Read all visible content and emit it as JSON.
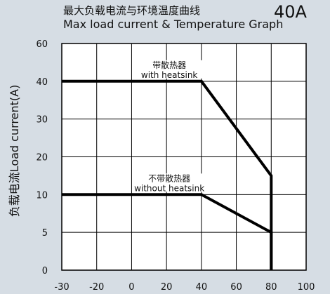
{
  "header": {
    "title_cn": "最大负载电流与环境温度曲线",
    "title_en": "Max load current & Temperature Graph",
    "rating": "40A"
  },
  "chart_data": {
    "type": "line",
    "title": "最大负载电流与环境温度曲线 Max load current & Temperature Graph",
    "xlabel": "",
    "ylabel": "负载电流Load current(A)",
    "x_ticks": [
      -30,
      -20,
      0,
      20,
      40,
      60,
      80,
      100
    ],
    "y_ticks": [
      0,
      5,
      10,
      20,
      30,
      40,
      60
    ],
    "grid": true,
    "series": [
      {
        "name": "带散热器 with heatsink",
        "label_cn": "带散热器",
        "label_en": "with heatsink",
        "x": [
          -30,
          40,
          80,
          80
        ],
        "y": [
          40,
          40,
          15,
          0
        ]
      },
      {
        "name": "不带散热器 without heatsink",
        "label_cn": "不带散热器",
        "label_en": "without heatsink",
        "x": [
          -30,
          40,
          80,
          80
        ],
        "y": [
          10,
          10,
          5,
          0
        ]
      }
    ],
    "colors": {
      "line": "#000000",
      "grid": "#000000",
      "background": "#ffffff",
      "page": "#d6dde4"
    }
  }
}
